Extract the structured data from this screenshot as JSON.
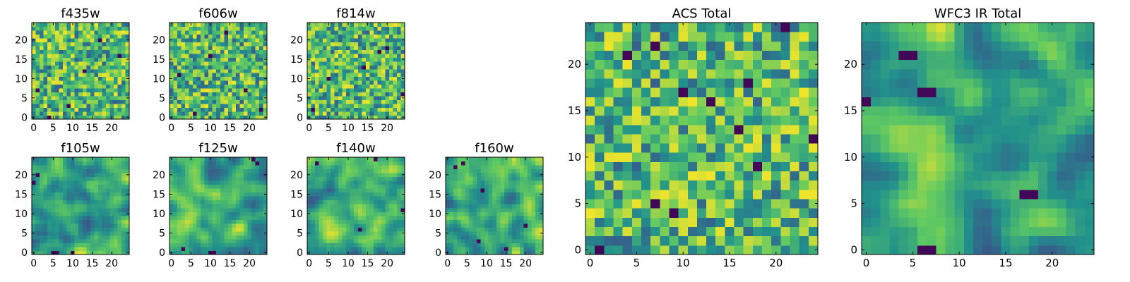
{
  "figure": {
    "panel_count": 9
  },
  "colormap": {
    "name": "viridis",
    "stops": [
      "#440154",
      "#3b528b",
      "#21918c",
      "#5ec962",
      "#fde725"
    ]
  },
  "chart_data": [
    {
      "type": "heatmap",
      "title": "f435w",
      "grid_size": 25,
      "xlim": [
        0,
        24
      ],
      "ylim": [
        0,
        24
      ],
      "x_ticks": [
        0,
        5,
        10,
        15,
        20
      ],
      "y_ticks": [
        0,
        5,
        10,
        15,
        20
      ],
      "grid": false,
      "pattern": "noise",
      "seed": 11,
      "dark_pixels": [
        [
          1,
          7
        ],
        [
          13,
          12
        ],
        [
          9,
          3
        ],
        [
          17,
          20
        ],
        [
          4,
          0
        ],
        [
          22,
          16
        ]
      ]
    },
    {
      "type": "heatmap",
      "title": "f606w",
      "grid_size": 25,
      "xlim": [
        0,
        24
      ],
      "ylim": [
        0,
        24
      ],
      "x_ticks": [
        0,
        5,
        10,
        15,
        20
      ],
      "y_ticks": [
        0,
        5,
        10,
        15,
        20
      ],
      "grid": false,
      "pattern": "noise",
      "seed": 23,
      "dark_pixels": [
        [
          14,
          22
        ],
        [
          2,
          11
        ],
        [
          19,
          7
        ],
        [
          10,
          16
        ],
        [
          23,
          2
        ],
        [
          6,
          1
        ]
      ]
    },
    {
      "type": "heatmap",
      "title": "f814w",
      "grid_size": 25,
      "xlim": [
        0,
        24
      ],
      "ylim": [
        0,
        24
      ],
      "x_ticks": [
        0,
        5,
        10,
        15,
        20
      ],
      "y_ticks": [
        0,
        5,
        10,
        15,
        20
      ],
      "grid": false,
      "pattern": "noise",
      "seed": 37,
      "dark_pixels": [
        [
          18,
          17
        ],
        [
          20,
          18
        ],
        [
          14,
          13
        ],
        [
          24,
          6
        ],
        [
          5,
          10
        ],
        [
          1,
          2
        ]
      ]
    },
    {
      "type": "heatmap",
      "title": "f105w",
      "grid_size": 25,
      "xlim": [
        0,
        24
      ],
      "ylim": [
        0,
        24
      ],
      "x_ticks": [
        0,
        5,
        10,
        15,
        20
      ],
      "y_ticks": [
        0,
        5,
        10,
        15,
        20
      ],
      "grid": false,
      "pattern": "smooth",
      "seed": 41,
      "dark_pixels": [
        [
          0,
          18
        ],
        [
          5,
          0
        ],
        [
          6,
          0
        ],
        [
          10,
          0
        ],
        [
          1,
          20
        ]
      ]
    },
    {
      "type": "heatmap",
      "title": "f125w",
      "grid_size": 25,
      "xlim": [
        0,
        24
      ],
      "ylim": [
        0,
        24
      ],
      "x_ticks": [
        0,
        5,
        10,
        15,
        20
      ],
      "y_ticks": [
        0,
        5,
        10,
        15,
        20
      ],
      "grid": false,
      "pattern": "smooth",
      "seed": 53,
      "dark_pixels": [
        [
          21,
          24
        ],
        [
          22,
          23
        ],
        [
          10,
          0
        ],
        [
          11,
          0
        ],
        [
          3,
          1
        ]
      ]
    },
    {
      "type": "heatmap",
      "title": "f140w",
      "grid_size": 25,
      "xlim": [
        0,
        24
      ],
      "ylim": [
        0,
        24
      ],
      "x_ticks": [
        0,
        5,
        10,
        15,
        20
      ],
      "y_ticks": [
        0,
        5,
        10,
        15,
        20
      ],
      "grid": false,
      "pattern": "smooth",
      "seed": 67,
      "dark_pixels": [
        [
          24,
          11
        ],
        [
          17,
          24
        ],
        [
          2,
          23
        ],
        [
          13,
          6
        ]
      ]
    },
    {
      "type": "heatmap",
      "title": "f160w",
      "grid_size": 25,
      "xlim": [
        0,
        24
      ],
      "ylim": [
        0,
        24
      ],
      "x_ticks": [
        0,
        5,
        10,
        15,
        20
      ],
      "y_ticks": [
        0,
        5,
        10,
        15,
        20
      ],
      "grid": false,
      "pattern": "smooth",
      "seed": 79,
      "dark_pixels": [
        [
          4,
          23
        ],
        [
          2,
          22
        ],
        [
          9,
          16
        ],
        [
          20,
          7
        ],
        [
          15,
          1
        ],
        [
          8,
          3
        ]
      ]
    },
    {
      "type": "heatmap",
      "title": "ACS Total",
      "grid_size": 25,
      "xlim": [
        0,
        24
      ],
      "ylim": [
        0,
        24
      ],
      "x_ticks": [
        0,
        5,
        10,
        15,
        20
      ],
      "y_ticks": [
        0,
        5,
        10,
        15,
        20
      ],
      "grid": false,
      "pattern": "noise",
      "seed": 97,
      "dark_pixels": [
        [
          4,
          21
        ],
        [
          7,
          22
        ],
        [
          10,
          17
        ],
        [
          1,
          0
        ],
        [
          9,
          4
        ],
        [
          18,
          9
        ],
        [
          16,
          13
        ],
        [
          24,
          12
        ],
        [
          13,
          16
        ],
        [
          21,
          24
        ],
        [
          17,
          18
        ],
        [
          7,
          5
        ]
      ]
    },
    {
      "type": "heatmap",
      "title": "WFC3 IR Total",
      "grid_size": 25,
      "xlim": [
        0,
        24
      ],
      "ylim": [
        0,
        24
      ],
      "x_ticks": [
        0,
        5,
        10,
        15,
        20
      ],
      "y_ticks": [
        0,
        5,
        10,
        15,
        20
      ],
      "grid": false,
      "pattern": "smooth",
      "seed": 101,
      "dark_pixels": [
        [
          4,
          21
        ],
        [
          5,
          21
        ],
        [
          6,
          17
        ],
        [
          7,
          17
        ],
        [
          0,
          16
        ],
        [
          17,
          6
        ],
        [
          18,
          6
        ],
        [
          6,
          0
        ],
        [
          7,
          0
        ]
      ]
    }
  ]
}
